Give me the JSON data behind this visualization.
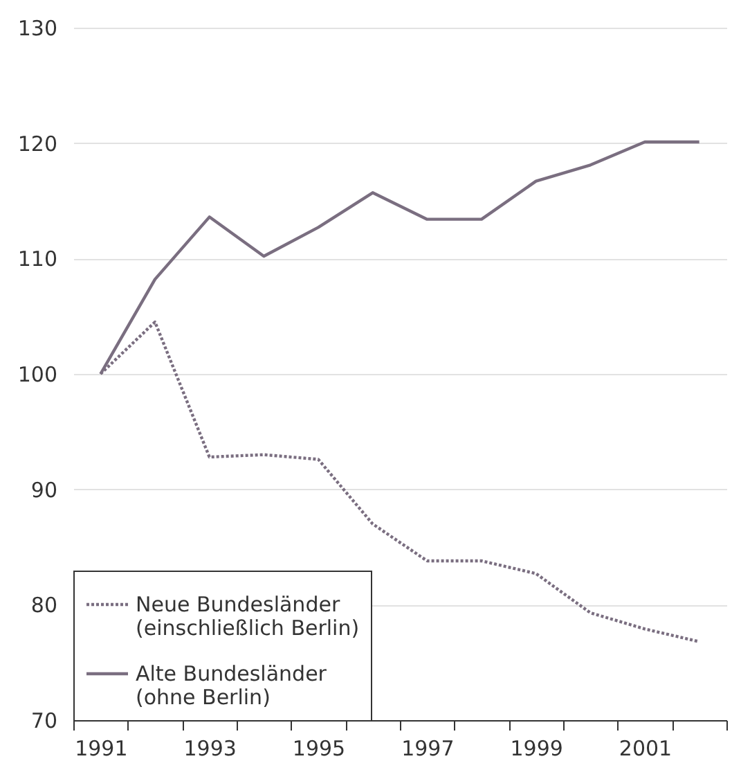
{
  "chart_data": {
    "type": "line",
    "categories": [
      "1991",
      null,
      "1993",
      null,
      "1995",
      null,
      "1997",
      null,
      "1999",
      null,
      "2001",
      null
    ],
    "series": [
      {
        "name": "Neue Bundesländer (einschließlich Berlin)",
        "color": "#7a6e80",
        "line_style": "dotted",
        "values": [
          100,
          104.5,
          92.8,
          93.0,
          92.6,
          87.0,
          83.8,
          83.8,
          82.7,
          79.3,
          77.9,
          76.8
        ]
      },
      {
        "name": "Alte Bundesländer (ohne Berlin)",
        "color": "#7a6e80",
        "line_style": "solid",
        "values": [
          100,
          108.2,
          113.6,
          110.2,
          112.7,
          115.7,
          113.4,
          113.4,
          116.7,
          118.1,
          120.1,
          120.1
        ]
      }
    ],
    "ylim": [
      70,
      130
    ],
    "yticks": [
      70,
      80,
      90,
      100,
      110,
      120,
      130
    ],
    "grid": "y",
    "legend": "bottom left",
    "marker": "none"
  }
}
